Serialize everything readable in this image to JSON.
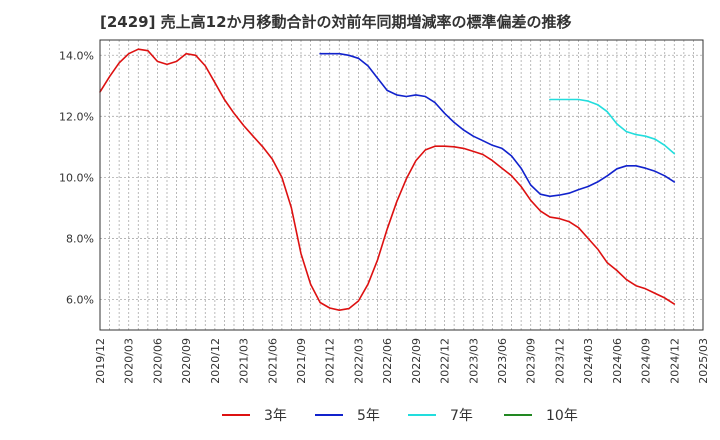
{
  "chart_data": {
    "type": "line",
    "title": "[2429]  売上高12か月移動合計の対前年同期増減率の標準偏差の推移",
    "xlabel": "",
    "ylabel": "",
    "ylim": [
      5.0,
      14.5
    ],
    "yticks": [
      6.0,
      8.0,
      10.0,
      12.0,
      14.0
    ],
    "ytick_labels": [
      "6.0%",
      "8.0%",
      "10.0%",
      "12.0%",
      "14.0%"
    ],
    "xlim": [
      "2019/12",
      "2025/03"
    ],
    "xtick_labels": [
      "2019/12",
      "2020/03",
      "2020/06",
      "2020/09",
      "2020/12",
      "2021/03",
      "2021/06",
      "2021/09",
      "2021/12",
      "2022/03",
      "2022/06",
      "2022/09",
      "2022/12",
      "2023/03",
      "2023/06",
      "2023/09",
      "2023/12",
      "2024/03",
      "2024/06",
      "2024/09",
      "2024/12",
      "2025/03"
    ],
    "grid": "dashed",
    "legend_position": "bottom",
    "series": [
      {
        "name": "3年",
        "color": "#dd1111",
        "points": [
          [
            "2019/12",
            12.8
          ],
          [
            "2020/01",
            13.3
          ],
          [
            "2020/02",
            13.75
          ],
          [
            "2020/03",
            14.05
          ],
          [
            "2020/04",
            14.2
          ],
          [
            "2020/05",
            14.15
          ],
          [
            "2020/06",
            13.8
          ],
          [
            "2020/07",
            13.7
          ],
          [
            "2020/08",
            13.8
          ],
          [
            "2020/09",
            14.05
          ],
          [
            "2020/10",
            14.0
          ],
          [
            "2020/11",
            13.65
          ],
          [
            "2020/12",
            13.1
          ],
          [
            "2021/01",
            12.55
          ],
          [
            "2021/02",
            12.1
          ],
          [
            "2021/03",
            11.7
          ],
          [
            "2021/04",
            11.35
          ],
          [
            "2021/05",
            11.0
          ],
          [
            "2021/06",
            10.6
          ],
          [
            "2021/07",
            10.0
          ],
          [
            "2021/08",
            9.0
          ],
          [
            "2021/09",
            7.5
          ],
          [
            "2021/10",
            6.5
          ],
          [
            "2021/11",
            5.9
          ],
          [
            "2021/12",
            5.72
          ],
          [
            "2022/01",
            5.65
          ],
          [
            "2022/02",
            5.7
          ],
          [
            "2022/03",
            5.95
          ],
          [
            "2022/04",
            6.5
          ],
          [
            "2022/05",
            7.3
          ],
          [
            "2022/06",
            8.3
          ],
          [
            "2022/07",
            9.2
          ],
          [
            "2022/08",
            9.95
          ],
          [
            "2022/09",
            10.55
          ],
          [
            "2022/10",
            10.9
          ],
          [
            "2022/11",
            11.02
          ],
          [
            "2022/12",
            11.02
          ],
          [
            "2023/01",
            11.0
          ],
          [
            "2023/02",
            10.95
          ],
          [
            "2023/03",
            10.85
          ],
          [
            "2023/04",
            10.75
          ],
          [
            "2023/05",
            10.55
          ],
          [
            "2023/06",
            10.3
          ],
          [
            "2023/07",
            10.05
          ],
          [
            "2023/08",
            9.7
          ],
          [
            "2023/09",
            9.25
          ],
          [
            "2023/10",
            8.9
          ],
          [
            "2023/11",
            8.7
          ],
          [
            "2023/12",
            8.65
          ],
          [
            "2024/01",
            8.55
          ],
          [
            "2024/02",
            8.35
          ],
          [
            "2024/03",
            8.0
          ],
          [
            "2024/04",
            7.65
          ],
          [
            "2024/05",
            7.2
          ],
          [
            "2024/06",
            6.95
          ],
          [
            "2024/07",
            6.65
          ],
          [
            "2024/08",
            6.45
          ],
          [
            "2024/09",
            6.35
          ],
          [
            "2024/10",
            6.2
          ],
          [
            "2024/11",
            6.05
          ],
          [
            "2024/12",
            5.85
          ]
        ]
      },
      {
        "name": "5年",
        "color": "#1122cc",
        "points": [
          [
            "2021/11",
            14.05
          ],
          [
            "2021/12",
            14.05
          ],
          [
            "2022/01",
            14.05
          ],
          [
            "2022/02",
            14.0
          ],
          [
            "2022/03",
            13.9
          ],
          [
            "2022/04",
            13.65
          ],
          [
            "2022/05",
            13.25
          ],
          [
            "2022/06",
            12.85
          ],
          [
            "2022/07",
            12.7
          ],
          [
            "2022/08",
            12.65
          ],
          [
            "2022/09",
            12.7
          ],
          [
            "2022/10",
            12.65
          ],
          [
            "2022/11",
            12.45
          ],
          [
            "2022/12",
            12.1
          ],
          [
            "2023/01",
            11.8
          ],
          [
            "2023/02",
            11.55
          ],
          [
            "2023/03",
            11.35
          ],
          [
            "2023/04",
            11.2
          ],
          [
            "2023/05",
            11.05
          ],
          [
            "2023/06",
            10.95
          ],
          [
            "2023/07",
            10.7
          ],
          [
            "2023/08",
            10.3
          ],
          [
            "2023/09",
            9.75
          ],
          [
            "2023/10",
            9.45
          ],
          [
            "2023/11",
            9.38
          ],
          [
            "2023/12",
            9.42
          ],
          [
            "2024/01",
            9.48
          ],
          [
            "2024/02",
            9.6
          ],
          [
            "2024/03",
            9.7
          ],
          [
            "2024/04",
            9.85
          ],
          [
            "2024/05",
            10.05
          ],
          [
            "2024/06",
            10.28
          ],
          [
            "2024/07",
            10.38
          ],
          [
            "2024/08",
            10.38
          ],
          [
            "2024/09",
            10.3
          ],
          [
            "2024/10",
            10.2
          ],
          [
            "2024/11",
            10.05
          ],
          [
            "2024/12",
            9.85
          ]
        ]
      },
      {
        "name": "7年",
        "color": "#22dddd",
        "points": [
          [
            "2023/11",
            12.55
          ],
          [
            "2023/12",
            12.55
          ],
          [
            "2024/01",
            12.55
          ],
          [
            "2024/02",
            12.55
          ],
          [
            "2024/03",
            12.5
          ],
          [
            "2024/04",
            12.38
          ],
          [
            "2024/05",
            12.15
          ],
          [
            "2024/06",
            11.75
          ],
          [
            "2024/07",
            11.5
          ],
          [
            "2024/08",
            11.4
          ],
          [
            "2024/09",
            11.35
          ],
          [
            "2024/10",
            11.25
          ],
          [
            "2024/11",
            11.05
          ],
          [
            "2024/12",
            10.78
          ]
        ]
      },
      {
        "name": "10年",
        "color": "#228822",
        "points": []
      }
    ]
  }
}
